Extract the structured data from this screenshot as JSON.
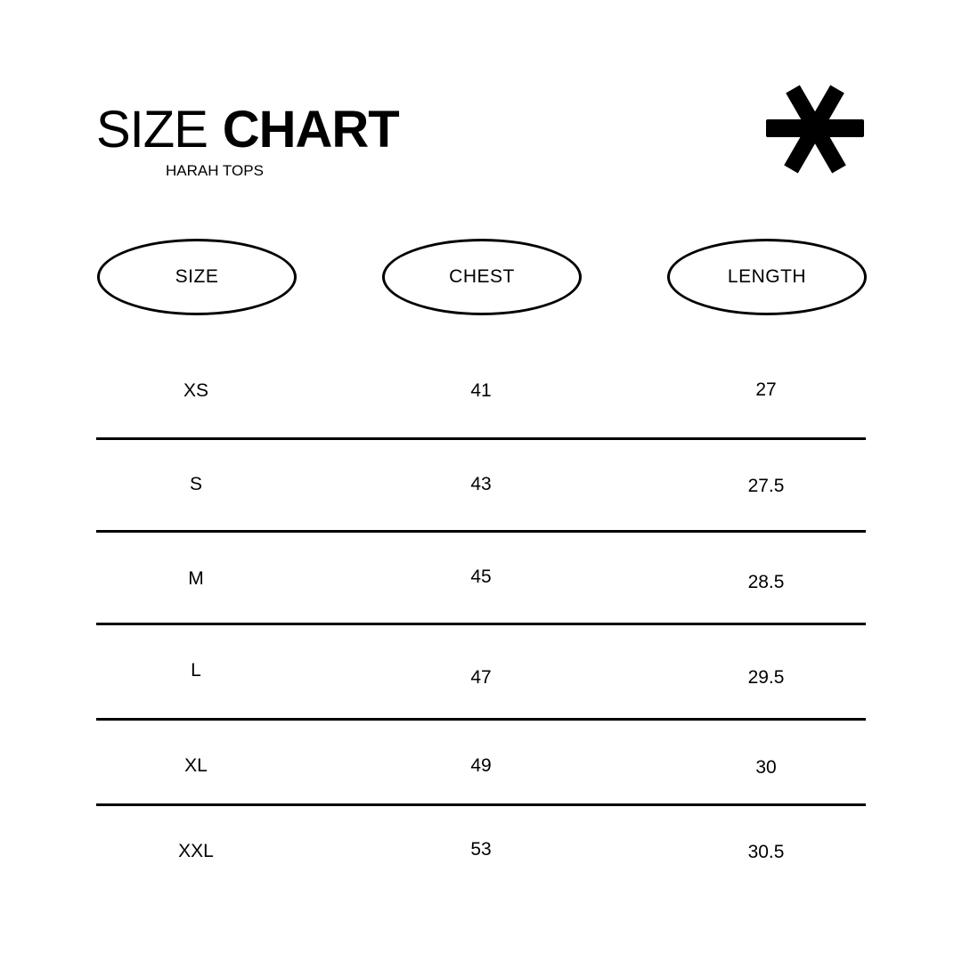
{
  "header": {
    "title_light": "SIZE",
    "title_bold": "CHART",
    "subtitle": "HARAH TOPS",
    "logo_icon": "asterisk-icon"
  },
  "table": {
    "columns": [
      "SIZE",
      "CHEST",
      "LENGTH"
    ],
    "rows": [
      [
        "XS",
        "41",
        "27"
      ],
      [
        "S",
        "43",
        "27.5"
      ],
      [
        "M",
        "45",
        "28.5"
      ],
      [
        "L",
        "47",
        "29.5"
      ],
      [
        "XL",
        "49",
        "30"
      ],
      [
        "XXL",
        "53",
        "30.5"
      ]
    ]
  }
}
